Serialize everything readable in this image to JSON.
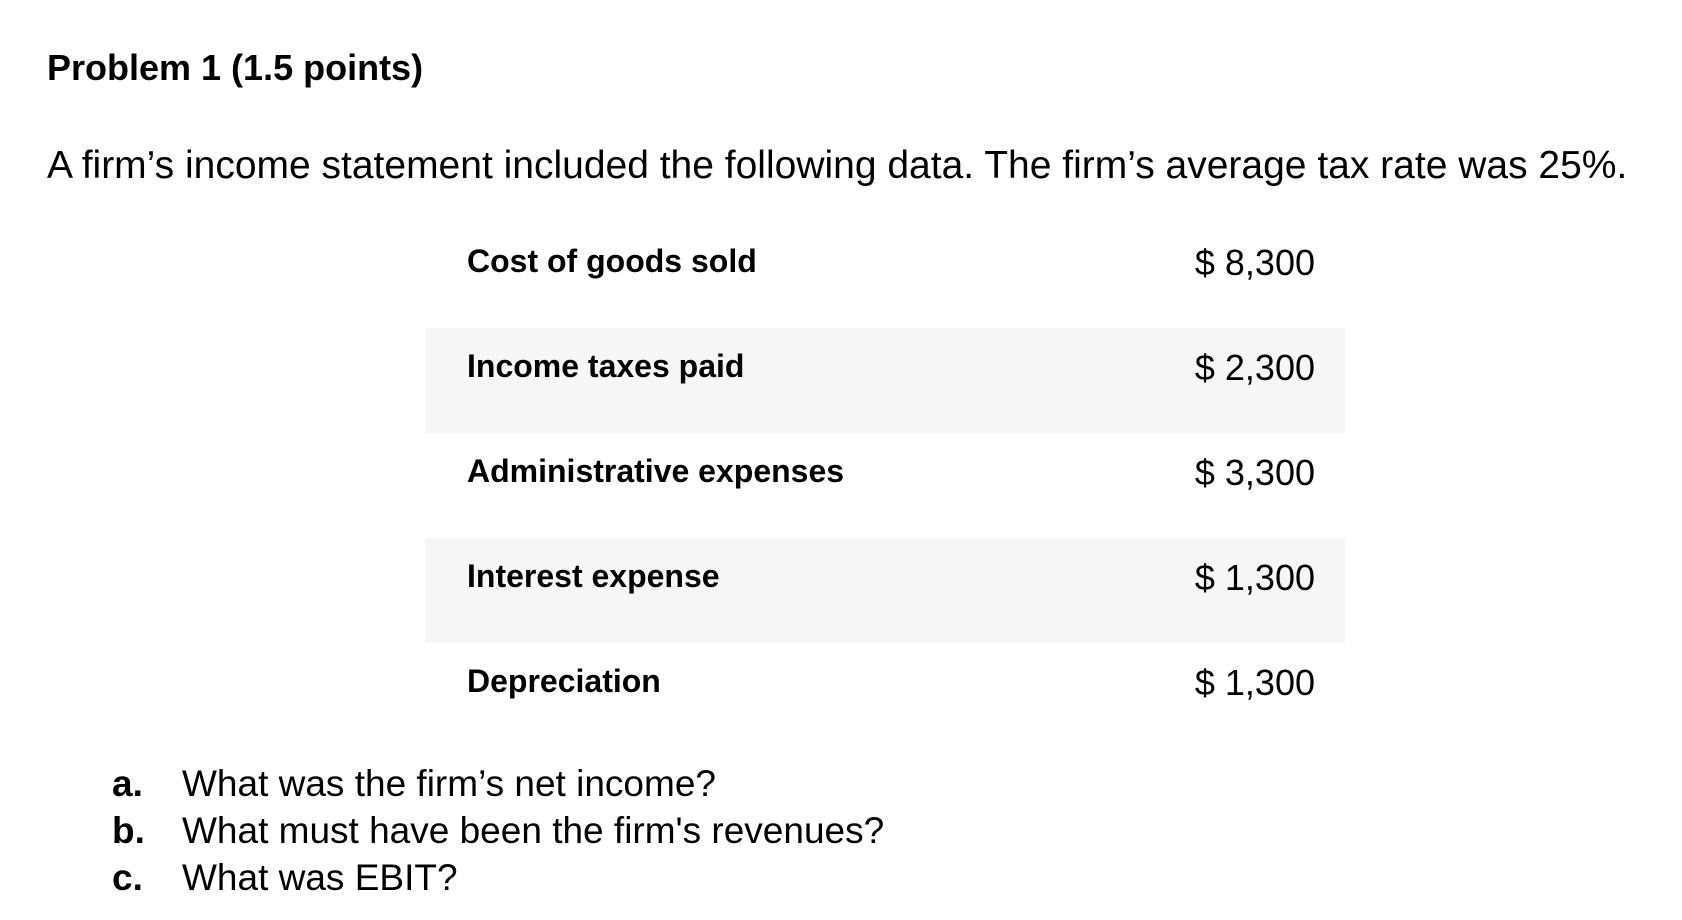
{
  "title": "Problem 1 (1.5 points)",
  "intro": "A firm’s income statement included the following data. The firm’s average tax rate was 25%.",
  "items": [
    {
      "label": "Cost of goods sold",
      "value": "$ 8,300"
    },
    {
      "label": "Income taxes paid",
      "value": "$ 2,300"
    },
    {
      "label": "Administrative expenses",
      "value": "$ 3,300"
    },
    {
      "label": "Interest expense",
      "value": "$ 1,300"
    },
    {
      "label": "Depreciation",
      "value": "$ 1,300"
    }
  ],
  "questions": [
    {
      "marker": "a.",
      "text": "What was the firm’s net income?"
    },
    {
      "marker": "b.",
      "text": "What must have been the firm's revenues?"
    },
    {
      "marker": "c.",
      "text": "What was EBIT?"
    }
  ]
}
